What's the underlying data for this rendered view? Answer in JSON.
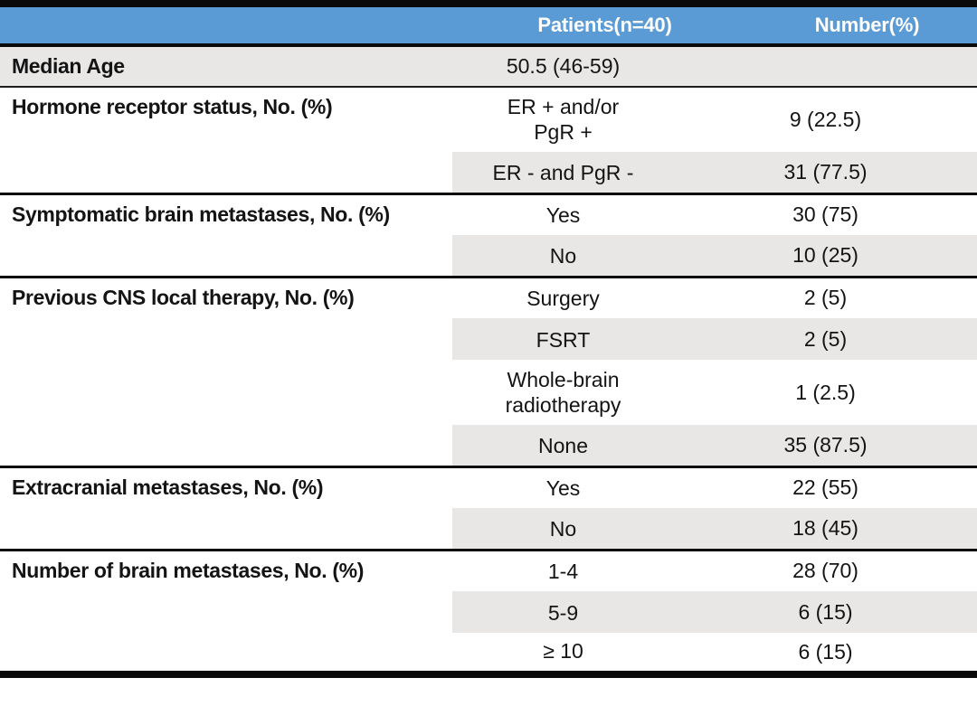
{
  "colors": {
    "header_bg": "#5b9bd5",
    "header_text": "#ffffff",
    "band_bg": "#e8e7e6",
    "rule": "#0a0a0a",
    "text": "#141414"
  },
  "table": {
    "columns": [
      {
        "label": ""
      },
      {
        "label": "Patients(n=40)"
      },
      {
        "label": "Number(%)"
      }
    ],
    "sections": [
      {
        "label": "Median Age",
        "full_row_shade": true,
        "rows": [
          {
            "value": "50.5 (46-59)",
            "number": "",
            "shaded": true
          }
        ]
      },
      {
        "label": "Hormone receptor status, No. (%)",
        "rows": [
          {
            "value": "ER + and/or\nPgR +",
            "number": "9 (22.5)",
            "shaded": false
          },
          {
            "value": "ER - and PgR -",
            "number": "31 (77.5)",
            "shaded": true
          }
        ]
      },
      {
        "label": "Symptomatic brain metastases, No. (%)",
        "rows": [
          {
            "value": "Yes",
            "number": "30 (75)",
            "shaded": false
          },
          {
            "value": "No",
            "number": "10 (25)",
            "shaded": true
          }
        ]
      },
      {
        "label": "Previous CNS local therapy, No. (%)",
        "rows": [
          {
            "value": "Surgery",
            "number": "2 (5)",
            "shaded": false
          },
          {
            "value": "FSRT",
            "number": "2 (5)",
            "shaded": true
          },
          {
            "value": "Whole-brain\nradiotherapy",
            "number": "1 (2.5)",
            "shaded": false
          },
          {
            "value": "None",
            "number": "35 (87.5)",
            "shaded": true
          }
        ]
      },
      {
        "label": "Extracranial metastases, No. (%)",
        "rows": [
          {
            "value": "Yes",
            "number": "22 (55)",
            "shaded": false
          },
          {
            "value": "No",
            "number": "18 (45)",
            "shaded": true
          }
        ]
      },
      {
        "label": "Number of brain metastases, No. (%)",
        "rows": [
          {
            "value": "1-4",
            "number": "28 (70)",
            "shaded": false
          },
          {
            "value": "5-9",
            "number": "6 (15)",
            "shaded": true
          },
          {
            "value": "≥ 10",
            "number": "6 (15)",
            "shaded": false
          }
        ]
      }
    ]
  }
}
